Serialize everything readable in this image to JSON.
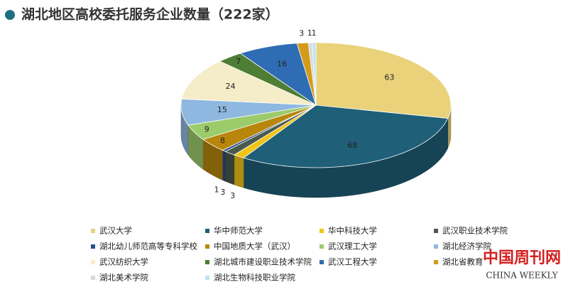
{
  "chart_data": {
    "type": "pie",
    "title": "湖北地区高校委托服务企业数量（222家）",
    "categories": [
      "武汉大学",
      "华中师范大学",
      "华中科技大学",
      "武汉职业技术学院",
      "湖北幼儿师范高等专科学校",
      "中国地质大学（武汉）",
      "武汉理工大学",
      "湖北经济学院",
      "武汉纺织大学",
      "湖北城市建设职业技术学院",
      "武汉工程大学",
      "湖北省教育",
      "湖北美术学院",
      "湖北生物科技职业学院"
    ],
    "values": [
      63,
      68,
      3,
      3,
      1,
      8,
      9,
      15,
      24,
      7,
      16,
      3,
      1,
      1
    ],
    "colors": [
      "#e9d27a",
      "#1f5f78",
      "#f0c419",
      "#4a5a4a",
      "#2a4e8a",
      "#b8860b",
      "#9ccb6b",
      "#8fb8e0",
      "#f5ecc8",
      "#4e7d34",
      "#2e6db4",
      "#d49a1c",
      "#d9d9d9",
      "#bfe3ef"
    ],
    "watermark": "中国周刊网",
    "watermark_sub": "CHINA WEEKLY"
  }
}
